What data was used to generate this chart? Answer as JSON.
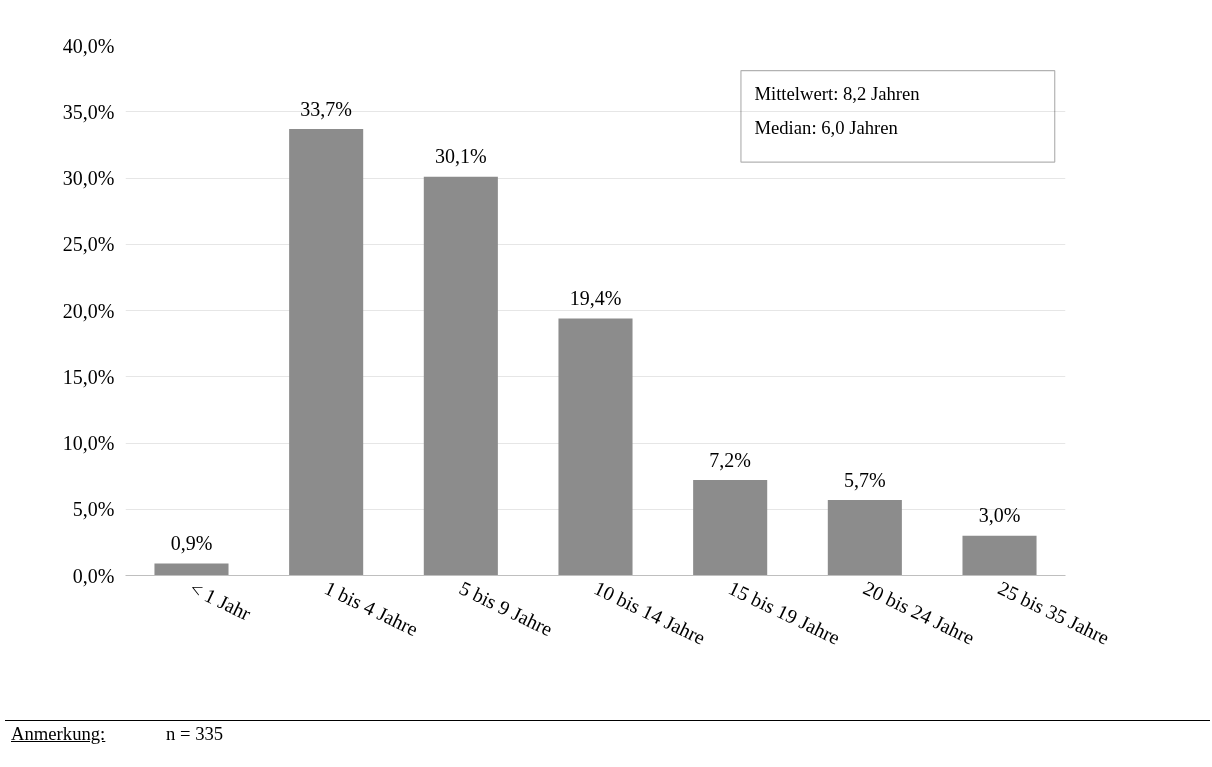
{
  "chart_data": {
    "type": "bar",
    "categories": [
      "< 1 Jahr",
      "1 bis 4 Jahre",
      "5 bis 9 Jahre",
      "10 bis 14 Jahre",
      "15 bis 19 Jahre",
      "20 bis 24 Jahre",
      "25 bis 35 Jahre"
    ],
    "values": [
      0.9,
      33.7,
      30.1,
      19.4,
      7.2,
      5.7,
      3.0
    ],
    "value_labels": [
      "0,9%",
      "33,7%",
      "30,1%",
      "19,4%",
      "7,2%",
      "5,7%",
      "3,0%"
    ],
    "color": "#8c8c8c",
    "ylim": [
      0,
      40
    ],
    "yticks": [
      {
        "value": 0,
        "label": "0,0%"
      },
      {
        "value": 5,
        "label": "5,0%"
      },
      {
        "value": 10,
        "label": "10,0%"
      },
      {
        "value": 15,
        "label": "15,0%"
      },
      {
        "value": 20,
        "label": "20,0%"
      },
      {
        "value": 25,
        "label": "25,0%"
      },
      {
        "value": 30,
        "label": "30,0%"
      },
      {
        "value": 35,
        "label": "35,0%"
      },
      {
        "value": 40,
        "label": "40,0%"
      }
    ],
    "grid": "y",
    "annotations": [
      "Mittelwert: 8,2 Jahren",
      "Median: 6,0 Jahren",
      "Anmerkung:",
      "n = 335"
    ]
  }
}
